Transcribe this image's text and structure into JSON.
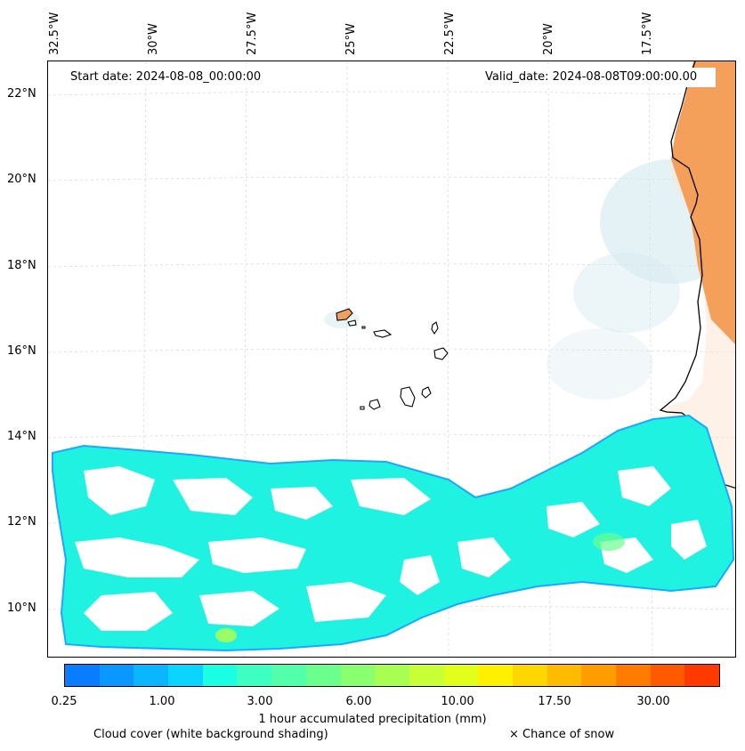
{
  "map": {
    "start_date_label": "Start date: 2024-08-08_00:00:00",
    "valid_date_label": "Valid_date: 2024-08-08T09:00:00.00",
    "longitude_labels": [
      "32.5°W",
      "30°W",
      "27.5°W",
      "25°W",
      "22.5°W",
      "20°W",
      "17.5°W"
    ],
    "latitude_labels": [
      "22°N",
      "20°N",
      "18°N",
      "16°N",
      "14°N",
      "12°N",
      "10°N"
    ],
    "colors": {
      "land_orange": "#f4a05a",
      "land_light": "#fde3cf",
      "cloud_blue": "#d4e9ef",
      "precip_main": "#1ff2e0",
      "precip_outline": "#1aa8ff",
      "precip_dark": "#0a7dff",
      "coast": "#000000"
    }
  },
  "colorbar": {
    "colors": [
      "#0a7dff",
      "#0a97ff",
      "#0ab6ff",
      "#0ad4ff",
      "#1affe4",
      "#3dffc2",
      "#52ffaa",
      "#6bff8e",
      "#8aff70",
      "#a8ff52",
      "#c8ff36",
      "#e2ff1c",
      "#fff000",
      "#ffd700",
      "#ffbb00",
      "#ff9c00",
      "#ff7c00",
      "#ff5a00",
      "#ff3a00"
    ],
    "tick_labels": [
      "0.25",
      "1.00",
      "3.00",
      "6.00",
      "10.00",
      "17.50",
      "30.00"
    ],
    "label": "1 hour accumulated precipitation (mm)"
  },
  "legend": {
    "cloud_cover": "Cloud cover (white background shading)",
    "snow": "× Chance of snow"
  }
}
